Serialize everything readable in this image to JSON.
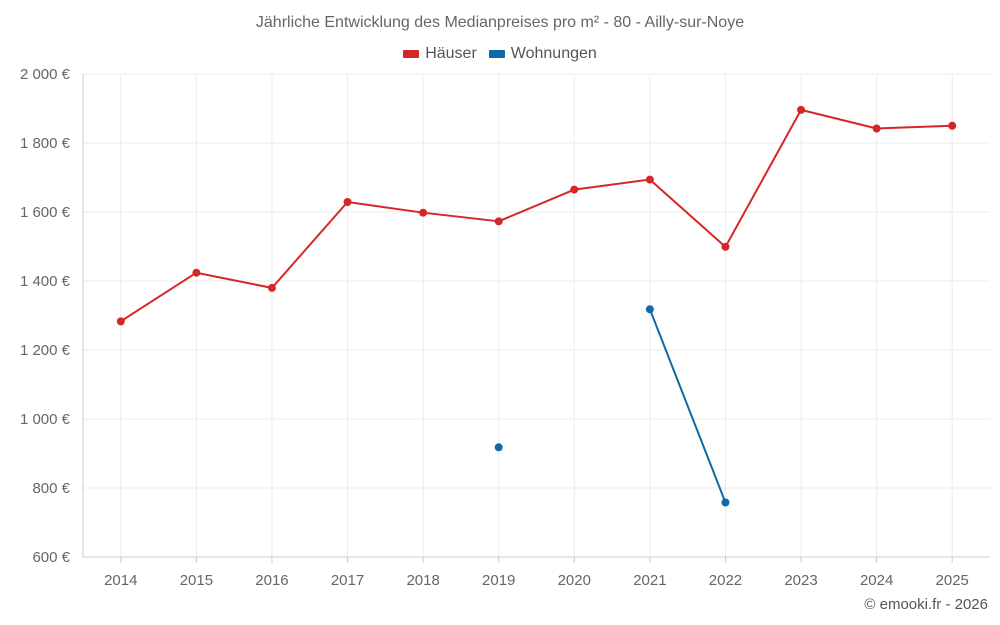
{
  "chart_data": {
    "type": "line",
    "title": "Jährliche Entwicklung des Medianpreises pro m² - 80 - Ailly-sur-Noye",
    "categories": [
      "2014",
      "2015",
      "2016",
      "2017",
      "2018",
      "2019",
      "2020",
      "2021",
      "2022",
      "2023",
      "2024",
      "2025"
    ],
    "ylim": [
      600,
      2000
    ],
    "yticks": [
      600,
      800,
      1000,
      1200,
      1400,
      1600,
      1800,
      2000
    ],
    "ytick_labels": [
      "600 €",
      "800 €",
      "1 000 €",
      "1 200 €",
      "1 400 €",
      "1 600 €",
      "1 800 €",
      "2 000 €"
    ],
    "grid": true,
    "legend_position": "top-center",
    "series": [
      {
        "name": "Häuser",
        "color": "#d62728",
        "values": [
          1283,
          1424,
          1380,
          1629,
          1598,
          1573,
          1665,
          1694,
          1499,
          1896,
          1842,
          1850
        ]
      },
      {
        "name": "Wohnungen",
        "color": "#0f6aa4",
        "values": [
          null,
          null,
          null,
          null,
          null,
          918,
          null,
          1318,
          758,
          null,
          null,
          null
        ]
      }
    ]
  },
  "credit": "© emooki.fr - 2026"
}
